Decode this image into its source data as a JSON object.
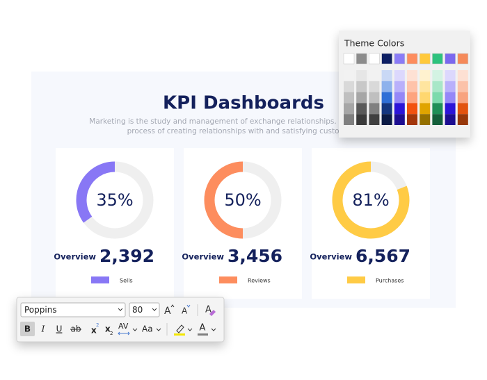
{
  "slide": {
    "title": "KPI Dashboards",
    "subtitle": [
      "Marketing is the study and management of exchange relationships. Marketing is the",
      "process of creating relationships with and satisfying customers."
    ],
    "cards": [
      {
        "value": 35,
        "value_label": "35%",
        "color": "#8877f5",
        "overview": "Overview",
        "total": "2,392",
        "legend": "Sells"
      },
      {
        "value": 50,
        "value_label": "50%",
        "color": "#fd8d5e",
        "overview": "Overview",
        "total": "3,456",
        "legend": "Reviews"
      },
      {
        "value": 81,
        "value_label": "81%",
        "color": "#ffcb45",
        "overview": "Overview",
        "total": "6,567",
        "legend": "Purchases"
      }
    ]
  },
  "theme_colors": {
    "title": "Theme Colors",
    "base": [
      "#ffffff",
      "#8c8c8c",
      "#ffffff",
      "#0d1f63",
      "#8b7cf6",
      "#fd8d5e",
      "#ffc93c",
      "#2ec27e",
      "#7b68ee",
      "#f58a5a"
    ],
    "shades": [
      [
        "#f2f2f2",
        "#e6e6e6",
        "#f2f2f2",
        "#c9d8f5",
        "#dcd8fd",
        "#fee1d4",
        "#fff2cf",
        "#d3f3e3",
        "#dcd8fd",
        "#fde0d3"
      ],
      [
        "#d9d9d9",
        "#c8c8c8",
        "#d9d9d9",
        "#8eb2ec",
        "#b9b0fb",
        "#fec3aa",
        "#ffe59f",
        "#a8e7c8",
        "#b9b0fb",
        "#fbc2a9"
      ],
      [
        "#bfbfbf",
        "#a6a6a6",
        "#bfbfbf",
        "#2f6fd6",
        "#9587f8",
        "#fda47f",
        "#ffd76f",
        "#7cdaac",
        "#9587f8",
        "#f8a37f"
      ],
      [
        "#a6a6a6",
        "#595959",
        "#808080",
        "#14367f",
        "#2c14d8",
        "#f2520f",
        "#e0a400",
        "#1f8f57",
        "#2c14d8",
        "#e2530f"
      ],
      [
        "#7f7f7f",
        "#3a3a3a",
        "#404040",
        "#0a1a44",
        "#1d0d90",
        "#a2360a",
        "#957000",
        "#145f3a",
        "#1d0d90",
        "#97380a"
      ]
    ]
  },
  "toolbar": {
    "font": "Poppins",
    "size": "80",
    "grow": "A",
    "shrink": "A",
    "clear": "A",
    "bold": "B",
    "italic": "I",
    "underline": "U",
    "strike": "ab",
    "superscript": [
      "x",
      "2"
    ],
    "subscript": [
      "x",
      "2"
    ],
    "spacing": "AV",
    "case": "Aa",
    "font_color": "A"
  }
}
